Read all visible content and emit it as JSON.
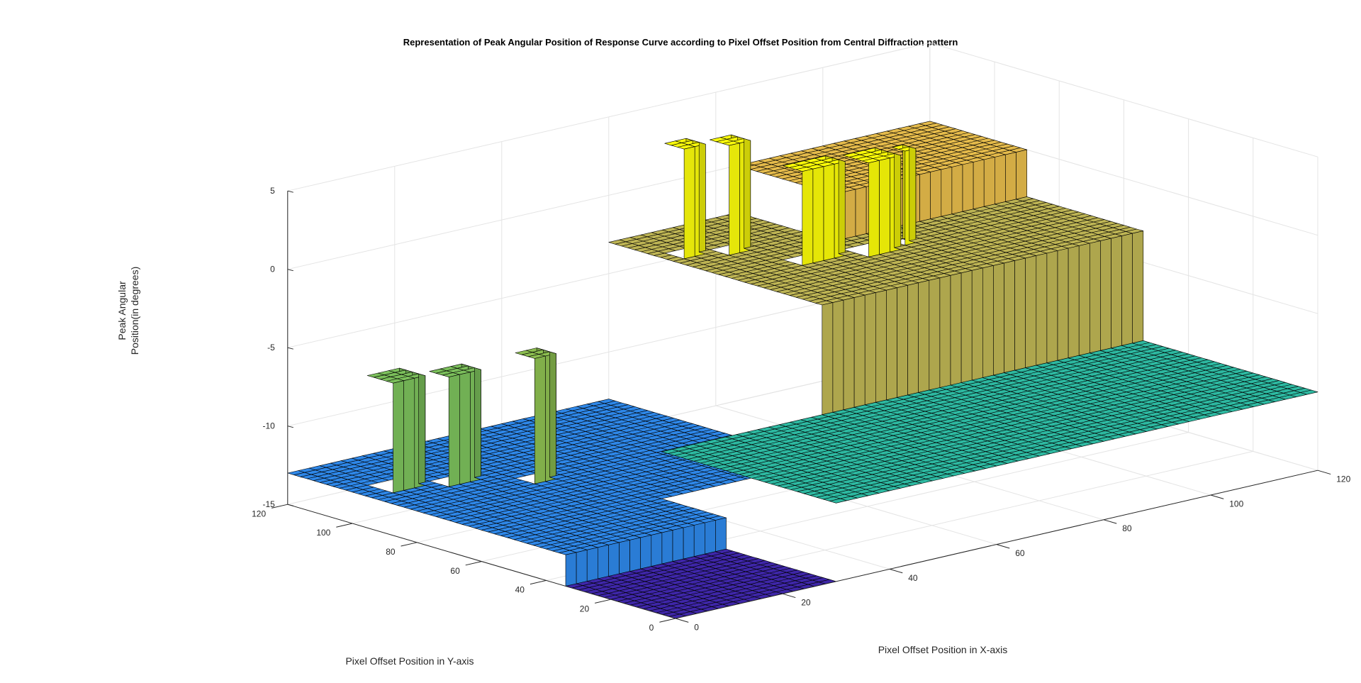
{
  "chart_data": {
    "type": "surface3d",
    "title": "Representation of Peak Angular Position of Response Curve according to Pixel Offset Position from Central Diffraction pattern",
    "xlabel": "Pixel Offset Position in X-axis",
    "ylabel": "Pixel Offset Position in Y-axis",
    "zlabel": [
      "Peak Angular",
      "Position(in degrees)"
    ],
    "xlim": [
      0,
      120
    ],
    "ylim": [
      0,
      120
    ],
    "zlim": [
      -15,
      5
    ],
    "x_ticks": [
      "0",
      "20",
      "40",
      "60",
      "80",
      "100",
      "120"
    ],
    "y_ticks": [
      "0",
      "20",
      "40",
      "60",
      "80",
      "100",
      "120"
    ],
    "z_ticks": [
      "-15",
      "-10",
      "-5",
      "0",
      "5"
    ],
    "grid": true,
    "colormap": "parula",
    "level_colors": {
      "-15": "#3e26a8",
      "-13": "#2e87e8",
      "-10": "#2db9a1",
      "-9": "#48c07c",
      "-3": "#bdb454",
      "0": "#e5bb4b",
      "2": "#f9f905"
    },
    "surface_levels": [
      {
        "name": "deep-region",
        "x_range": [
          0,
          40
        ],
        "y_range": [
          0,
          35
        ],
        "z": -15
      },
      {
        "name": "lower-plateau",
        "x_range": [
          0,
          60
        ],
        "y_range": [
          35,
          120
        ],
        "z": -13
      },
      {
        "name": "middle-plateau",
        "x_range": [
          30,
          120
        ],
        "y_range": [
          0,
          55
        ],
        "z": -10
      },
      {
        "name": "upper-plateau",
        "x_range": [
          60,
          120
        ],
        "y_range": [
          55,
          120
        ],
        "z": -3
      },
      {
        "name": "top-plateau",
        "x_range": [
          85,
          120
        ],
        "y_range": [
          90,
          120
        ],
        "z": 0
      }
    ],
    "spikes": [
      {
        "x": [
          5,
          10
        ],
        "y": [
          95,
          102
        ],
        "z": -6
      },
      {
        "x": [
          12,
          18
        ],
        "y": [
          90,
          97
        ],
        "z": -6
      },
      {
        "x": [
          22,
          27
        ],
        "y": [
          80,
          86
        ],
        "z": -5
      },
      {
        "x": [
          62,
          67
        ],
        "y": [
          100,
          106
        ],
        "z": 4
      },
      {
        "x": [
          68,
          73
        ],
        "y": [
          96,
          102
        ],
        "z": 4
      },
      {
        "x": [
          73,
          80
        ],
        "y": [
          80,
          87
        ],
        "z": 3
      },
      {
        "x": [
          82,
          88
        ],
        "y": [
          77,
          84
        ],
        "z": 3
      },
      {
        "x": [
          90,
          93
        ],
        "y": [
          78,
          82
        ],
        "z": 3
      }
    ]
  }
}
